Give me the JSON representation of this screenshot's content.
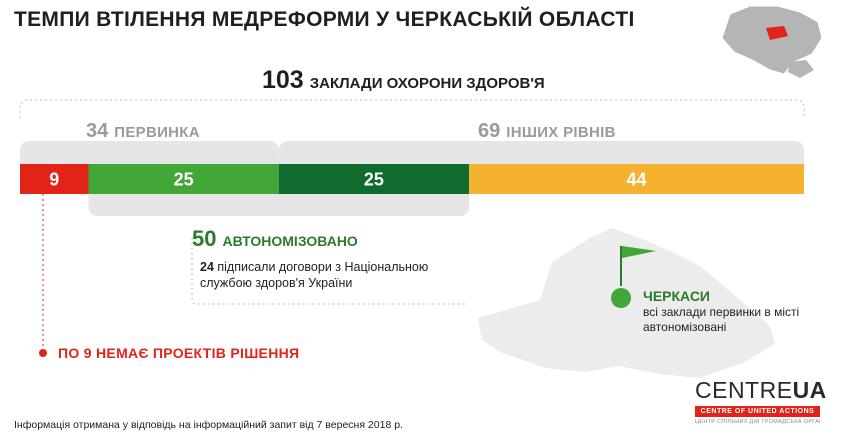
{
  "title": "ТЕМПИ ВТІЛЕННЯ МЕДРЕФОРМИ У ЧЕРКАСЬКІЙ ОБЛАСТІ",
  "total": {
    "value": "103",
    "label": "ЗАКЛАДИ ОХОРОНИ ЗДОРОВ'Я"
  },
  "groups": [
    {
      "value": "34",
      "label": "ПЕРВИНКА"
    },
    {
      "value": "69",
      "label": "ІНШИХ РІВНІВ"
    }
  ],
  "autonomized": {
    "value": "50",
    "label": "АВТОНОМІЗОВАНО",
    "contracts_value": "24",
    "contracts_text": "підписали договори з Національною службою здоров'я України"
  },
  "no_docs": "ПО 9 НЕМАЄ ПРОЕКТІВ РІШЕННЯ",
  "city": {
    "name": "ЧЕРКАСИ",
    "description": "всі заклади первинки в місті автономізовані"
  },
  "footnote": "Інформація отримана у відповідь на інформаційний запит від 7 вересня 2018 р.",
  "logo": {
    "word_light": "CENTRE",
    "word_bold": "UA",
    "band": "CENTRE OF UNITED ACTIONS",
    "sub": "ЦЕНТР СПІЛЬНИХ ДІЙ ГРОМАДСЬКА ОРГАНІЗАЦІЯ"
  },
  "chart_data": {
    "type": "bar",
    "orientation": "horizontal-stacked",
    "total": 103,
    "segments": [
      {
        "value": 9,
        "color": "#e2231a"
      },
      {
        "value": 25,
        "color": "#42a638"
      },
      {
        "value": 25,
        "color": "#0f6b2e"
      },
      {
        "value": 44,
        "color": "#f5b22e"
      }
    ],
    "groups": [
      {
        "value": 34,
        "label": "ПЕРВИНКА",
        "segments": [
          0,
          1
        ]
      },
      {
        "value": 69,
        "label": "ІНШИХ РІВНІВ",
        "segments": [
          2,
          3
        ]
      },
      {
        "value": 50,
        "label": "АВТОНОМІЗОВАНО",
        "segments": [
          1,
          2
        ]
      }
    ],
    "colors": {
      "red": "#e2231a",
      "green_light": "#42a638",
      "green_dark": "#0f6b2e",
      "orange": "#f5b22e",
      "bracket_gray": "#e6e6e6"
    }
  }
}
